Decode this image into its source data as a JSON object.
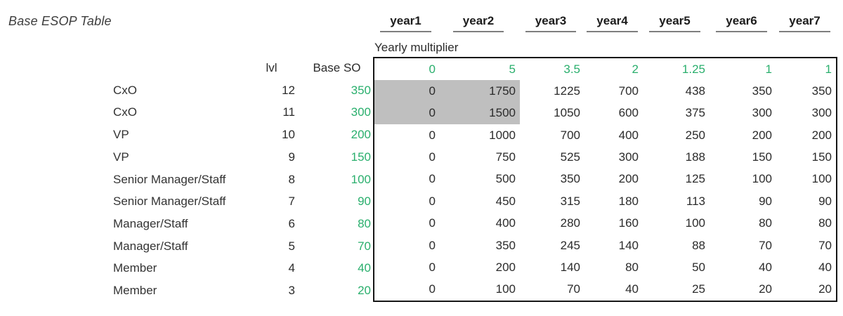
{
  "title": "Base ESOP Table",
  "colors": {
    "green": "#2aaf6d",
    "gray_fill": "#bfbfbf",
    "underline": "#7f7f7f",
    "text": "#2b2b2b",
    "box_border": "#161616"
  },
  "years": [
    "year1",
    "year2",
    "year3",
    "year4",
    "year5",
    "year6",
    "year7"
  ],
  "multiplier_label": "Yearly multiplier",
  "multipliers": [
    "0",
    "5",
    "3.5",
    "2",
    "1.25",
    "1",
    "1"
  ],
  "left_headers": {
    "lvl": "lvl",
    "base_so": "Base SO"
  },
  "rows": [
    {
      "role": "CxO",
      "lvl": "12",
      "base_so": "350",
      "values": [
        "0",
        "1750",
        "1225",
        "700",
        "438",
        "350",
        "350"
      ]
    },
    {
      "role": "CxO",
      "lvl": "11",
      "base_so": "300",
      "values": [
        "0",
        "1500",
        "1050",
        "600",
        "375",
        "300",
        "300"
      ]
    },
    {
      "role": "VP",
      "lvl": "10",
      "base_so": "200",
      "values": [
        "0",
        "1000",
        "700",
        "400",
        "250",
        "200",
        "200"
      ]
    },
    {
      "role": "VP",
      "lvl": "9",
      "base_so": "150",
      "values": [
        "0",
        "750",
        "525",
        "300",
        "188",
        "150",
        "150"
      ]
    },
    {
      "role": "Senior Manager/Staff",
      "lvl": "8",
      "base_so": "100",
      "values": [
        "0",
        "500",
        "350",
        "200",
        "125",
        "100",
        "100"
      ]
    },
    {
      "role": "Senior Manager/Staff",
      "lvl": "7",
      "base_so": "90",
      "values": [
        "0",
        "450",
        "315",
        "180",
        "113",
        "90",
        "90"
      ]
    },
    {
      "role": "Manager/Staff",
      "lvl": "6",
      "base_so": "80",
      "values": [
        "0",
        "400",
        "280",
        "160",
        "100",
        "80",
        "80"
      ]
    },
    {
      "role": "Manager/Staff",
      "lvl": "5",
      "base_so": "70",
      "values": [
        "0",
        "350",
        "245",
        "140",
        "88",
        "70",
        "70"
      ]
    },
    {
      "role": "Member",
      "lvl": "4",
      "base_so": "40",
      "values": [
        "0",
        "200",
        "140",
        "80",
        "50",
        "40",
        "40"
      ]
    },
    {
      "role": "Member",
      "lvl": "3",
      "base_so": "20",
      "values": [
        "0",
        "100",
        "70",
        "40",
        "25",
        "20",
        "20"
      ]
    }
  ],
  "highlight": {
    "rows": [
      0,
      1
    ],
    "cols": [
      0,
      1
    ]
  }
}
